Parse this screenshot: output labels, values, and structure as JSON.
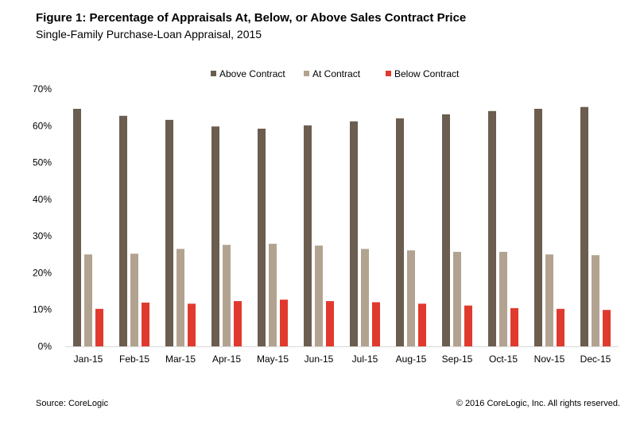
{
  "title": "Figure 1: Percentage of Appraisals At, Below, or Above Sales Contract Price",
  "subtitle": "Single-Family Purchase-Loan Appraisal, 2015",
  "footer": {
    "source": "Source: CoreLogic",
    "copyright": "© 2016 CoreLogic, Inc. All rights reserved."
  },
  "chart_data": {
    "type": "bar",
    "title": "Figure 1: Percentage of Appraisals At, Below, or Above Sales Contract Price",
    "subtitle": "Single-Family Purchase-Loan Appraisal, 2015",
    "categories": [
      "Jan-15",
      "Feb-15",
      "Mar-15",
      "Apr-15",
      "May-15",
      "Jun-15",
      "Jul-15",
      "Aug-15",
      "Sep-15",
      "Oct-15",
      "Nov-15",
      "Dec-15"
    ],
    "series": [
      {
        "name": "Above Contract",
        "color": "#6b5d4f",
        "values": [
          64.6,
          62.7,
          61.6,
          59.8,
          59.2,
          60.1,
          61.2,
          62.0,
          63.1,
          64.0,
          64.6,
          65.1
        ]
      },
      {
        "name": "At Contract",
        "color": "#b2a391",
        "values": [
          25.0,
          25.2,
          26.5,
          27.6,
          27.9,
          27.4,
          26.5,
          26.1,
          25.7,
          25.7,
          25.0,
          24.8
        ]
      },
      {
        "name": "Below Contract",
        "color": "#e03a2f",
        "values": [
          10.2,
          11.9,
          11.6,
          12.3,
          12.7,
          12.3,
          12.0,
          11.6,
          11.1,
          10.4,
          10.2,
          9.9
        ]
      }
    ],
    "yticks": [
      "0%",
      "10%",
      "20%",
      "30%",
      "40%",
      "50%",
      "60%",
      "70%"
    ],
    "ylim": [
      0,
      70
    ],
    "xlabel": "",
    "ylabel": "",
    "grid": false,
    "legend_position": "top-center",
    "unit": "%"
  }
}
